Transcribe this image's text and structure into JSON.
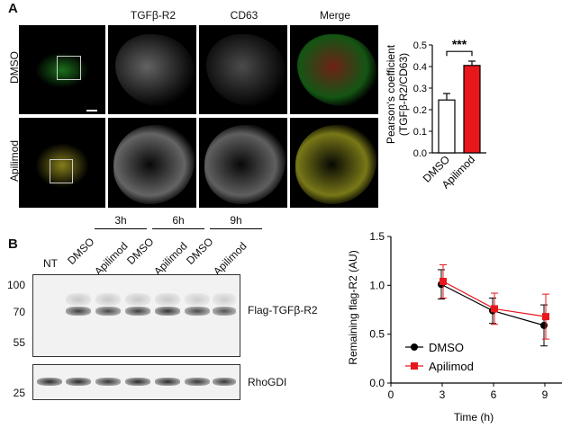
{
  "panel_a": {
    "letter": "A",
    "columns": [
      "TGFβ-R2",
      "CD63",
      "Merge"
    ],
    "rows": [
      "DMSO",
      "Apilimod"
    ]
  },
  "panel_b": {
    "letter": "B",
    "time_groups": [
      "3h",
      "6h",
      "9h"
    ],
    "lanes": [
      "NT",
      "DMSO",
      "Apilimod",
      "DMSO",
      "Apilimod",
      "DMSO",
      "Apilimod"
    ],
    "mw_markers": [
      "100",
      "70",
      "55",
      "25"
    ],
    "blot_labels": [
      "Flag-TGFβ-R2",
      "RhoGDI"
    ]
  },
  "chart_data": [
    {
      "type": "bar",
      "categories": [
        "DMSO",
        "Apilimod"
      ],
      "values": [
        0.245,
        0.405
      ],
      "errors": [
        0.03,
        0.02
      ],
      "colors": [
        "#ffffff",
        "#e8171c"
      ],
      "ylabel": "Pearson's coefficient",
      "ylabel2": "(TGFβ-R2/CD63)",
      "yticks": [
        0.0,
        0.1,
        0.2,
        0.3,
        0.4,
        0.5
      ],
      "ylim": [
        0,
        0.5
      ],
      "significance": "***"
    },
    {
      "type": "line",
      "x": [
        3,
        6,
        9
      ],
      "xticks": [
        0,
        3,
        6,
        9
      ],
      "xlim": [
        0,
        10
      ],
      "yticks": [
        0.0,
        0.5,
        1.0,
        1.5
      ],
      "ylim": [
        0,
        1.5
      ],
      "xlabel": "Time (h)",
      "ylabel": "Remaining flag-R2 (AU)",
      "series": [
        {
          "name": "DMSO",
          "values": [
            1.01,
            0.74,
            0.59
          ],
          "errors": [
            0.15,
            0.13,
            0.21
          ],
          "color": "#000000",
          "marker": "circle"
        },
        {
          "name": "Apilimod",
          "values": [
            1.04,
            0.76,
            0.68
          ],
          "errors": [
            0.17,
            0.16,
            0.23
          ],
          "color": "#e8171c",
          "marker": "square"
        }
      ],
      "legend": "bottom-left"
    }
  ]
}
